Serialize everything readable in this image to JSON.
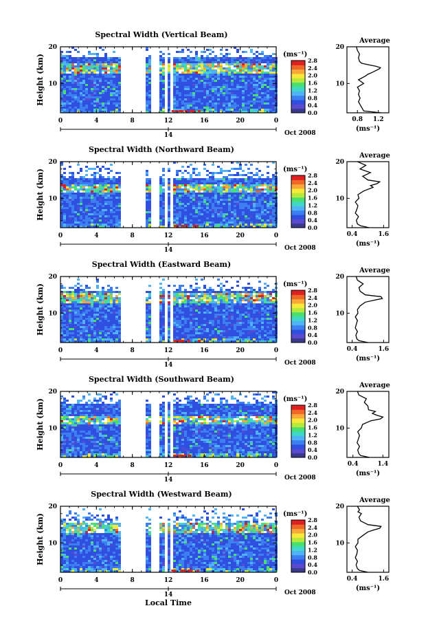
{
  "figure": {
    "xlabel": "Local Time",
    "ylabel": "Height (km)",
    "date_label": "Oct 2008",
    "day_label": "14",
    "unit_label": "(ms⁻¹)",
    "colorbar_ticks": [
      "0.0",
      "0.4",
      "0.8",
      "1.2",
      "1.6",
      "2.0",
      "2.4",
      "2.8"
    ],
    "colorbar_colors": [
      "#3a3a8c",
      "#5a4ad0",
      "#2f4fe0",
      "#3b7ff0",
      "#4fb3f5",
      "#3fd8c8",
      "#48e070",
      "#b8e83a",
      "#f8e83a",
      "#f8a838",
      "#f06828",
      "#e02020"
    ],
    "average_title": "Average"
  },
  "chart_data": [
    {
      "type": "heatmap",
      "title": "Spectral Width (Vertical Beam)",
      "x_ticks": [
        "0",
        "4",
        "8",
        "12",
        "16",
        "20",
        "0"
      ],
      "xlim": [
        0,
        24
      ],
      "y_ticks": [
        "10",
        "20"
      ],
      "ylim": [
        2,
        20
      ],
      "gaps_hours": [
        [
          6.7,
          9.3
        ],
        [
          9.8,
          10.9
        ],
        [
          11.4,
          11.7
        ],
        [
          12.05,
          12.25
        ]
      ],
      "dense_top_km": 17.5,
      "sparse_top_km": 20,
      "hot_band_km": 14.5,
      "average": {
        "title": "Average",
        "x_ticks": [
          "0.8",
          "1.2"
        ],
        "xlim": [
          0.6,
          1.4
        ],
        "profile": [
          [
            2,
            1.25
          ],
          [
            2.5,
            0.92
          ],
          [
            3,
            0.9
          ],
          [
            4,
            0.86
          ],
          [
            5,
            0.82
          ],
          [
            6,
            0.85
          ],
          [
            7,
            0.82
          ],
          [
            8,
            0.84
          ],
          [
            9,
            0.8
          ],
          [
            10,
            0.92
          ],
          [
            11,
            0.82
          ],
          [
            12,
            0.95
          ],
          [
            12.5,
            1.0
          ],
          [
            13,
            1.08
          ],
          [
            13.5,
            1.15
          ],
          [
            14,
            1.22
          ],
          [
            14.3,
            1.24
          ],
          [
            14.7,
            1.15
          ],
          [
            15,
            1.05
          ],
          [
            15.5,
            0.88
          ],
          [
            16,
            0.84
          ],
          [
            17,
            0.82
          ],
          [
            18,
            0.84
          ],
          [
            19,
            0.8
          ],
          [
            20,
            0.78
          ]
        ]
      }
    },
    {
      "type": "heatmap",
      "title": "Spectral Width (Northward Beam)",
      "x_ticks": [
        "0",
        "4",
        "8",
        "12",
        "16",
        "20",
        "0"
      ],
      "xlim": [
        0,
        24
      ],
      "y_ticks": [
        "10",
        "20"
      ],
      "ylim": [
        2,
        20
      ],
      "gaps_hours": [
        [
          6.7,
          9.3
        ],
        [
          9.8,
          10.9
        ],
        [
          11.4,
          11.7
        ],
        [
          12.05,
          12.25
        ]
      ],
      "dense_top_km": 15.5,
      "sparse_top_km": 20,
      "hot_band_km": 13.0,
      "average": {
        "title": "Average",
        "x_ticks": [
          "0.4",
          "1.6"
        ],
        "xlim": [
          0.2,
          1.8
        ],
        "profile": [
          [
            2,
            1.05
          ],
          [
            2.5,
            0.72
          ],
          [
            3,
            0.6
          ],
          [
            4,
            0.56
          ],
          [
            5,
            0.64
          ],
          [
            6,
            0.52
          ],
          [
            7,
            0.58
          ],
          [
            8,
            0.62
          ],
          [
            9,
            0.52
          ],
          [
            10,
            0.66
          ],
          [
            11,
            0.62
          ],
          [
            12,
            0.84
          ],
          [
            13,
            1.2
          ],
          [
            13.5,
            1.1
          ],
          [
            14,
            1.35
          ],
          [
            14.5,
            1.45
          ],
          [
            15,
            1.0
          ],
          [
            16,
            0.8
          ],
          [
            17,
            1.1
          ],
          [
            18,
            0.7
          ],
          [
            19,
            0.92
          ],
          [
            20,
            0.6
          ]
        ]
      }
    },
    {
      "type": "heatmap",
      "title": "Spectral Width (Eastward Beam)",
      "x_ticks": [
        "0",
        "4",
        "8",
        "12",
        "16",
        "20",
        "0"
      ],
      "xlim": [
        0,
        24
      ],
      "y_ticks": [
        "10",
        "20"
      ],
      "ylim": [
        2,
        20
      ],
      "gaps_hours": [
        [
          6.7,
          9.3
        ],
        [
          9.8,
          10.9
        ],
        [
          11.4,
          11.7
        ],
        [
          12.05,
          12.25
        ]
      ],
      "dense_top_km": 16.5,
      "sparse_top_km": 19,
      "hot_band_km": 14.3,
      "average": {
        "title": "Average",
        "x_ticks": [
          "0.4",
          "1.6"
        ],
        "xlim": [
          0.2,
          1.8
        ],
        "profile": [
          [
            2,
            1.0
          ],
          [
            2.5,
            0.66
          ],
          [
            3,
            0.58
          ],
          [
            4,
            0.54
          ],
          [
            5,
            0.6
          ],
          [
            6,
            0.52
          ],
          [
            7,
            0.56
          ],
          [
            8,
            0.6
          ],
          [
            9,
            0.52
          ],
          [
            10,
            0.62
          ],
          [
            11,
            0.6
          ],
          [
            12,
            0.7
          ],
          [
            13,
            0.9
          ],
          [
            13.5,
            1.2
          ],
          [
            14,
            1.55
          ],
          [
            14.5,
            1.5
          ],
          [
            15,
            0.9
          ],
          [
            16,
            0.7
          ],
          [
            17,
            0.66
          ],
          [
            18,
            0.82
          ],
          [
            19,
            0.6
          ],
          [
            20,
            0.55
          ]
        ]
      }
    },
    {
      "type": "heatmap",
      "title": "Spectral Width (Southward Beam)",
      "x_ticks": [
        "0",
        "4",
        "8",
        "12",
        "16",
        "20",
        "0"
      ],
      "xlim": [
        0,
        24
      ],
      "y_ticks": [
        "10",
        "20"
      ],
      "ylim": [
        2,
        20
      ],
      "gaps_hours": [
        [
          6.7,
          9.3
        ],
        [
          9.8,
          10.9
        ],
        [
          11.4,
          11.7
        ],
        [
          12.05,
          12.25
        ]
      ],
      "dense_top_km": 17.0,
      "sparse_top_km": 20,
      "hot_band_km": 12.5,
      "average": {
        "title": "Average",
        "x_ticks": [
          "0.4",
          "1.4"
        ],
        "xlim": [
          0.2,
          1.6
        ],
        "profile": [
          [
            2,
            0.95
          ],
          [
            2.5,
            0.66
          ],
          [
            3,
            0.6
          ],
          [
            4,
            0.56
          ],
          [
            5,
            0.62
          ],
          [
            6,
            0.54
          ],
          [
            7,
            0.58
          ],
          [
            8,
            0.62
          ],
          [
            9,
            0.56
          ],
          [
            10,
            0.68
          ],
          [
            11,
            0.72
          ],
          [
            12,
            1.0
          ],
          [
            12.5,
            1.32
          ],
          [
            13,
            1.4
          ],
          [
            13.5,
            1.2
          ],
          [
            14,
            1.05
          ],
          [
            14.5,
            1.15
          ],
          [
            15,
            0.92
          ],
          [
            16,
            0.9
          ],
          [
            17,
            0.78
          ],
          [
            18,
            0.85
          ],
          [
            19,
            0.6
          ],
          [
            20,
            0.55
          ]
        ]
      }
    },
    {
      "type": "heatmap",
      "title": "Spectral Width (Westward Beam)",
      "x_ticks": [
        "0",
        "4",
        "8",
        "12",
        "16",
        "20",
        "0"
      ],
      "xlim": [
        0,
        24
      ],
      "y_ticks": [
        "10",
        "20"
      ],
      "ylim": [
        2,
        20
      ],
      "gaps_hours": [
        [
          6.7,
          9.3
        ],
        [
          9.8,
          10.9
        ],
        [
          11.4,
          11.7
        ],
        [
          12.05,
          12.25
        ]
      ],
      "dense_top_km": 16.0,
      "sparse_top_km": 19,
      "hot_band_km": 14.5,
      "average": {
        "title": "Average",
        "x_ticks": [
          "0.4",
          "1.6"
        ],
        "xlim": [
          0.2,
          1.8
        ],
        "profile": [
          [
            2,
            1.0
          ],
          [
            2.5,
            0.68
          ],
          [
            3,
            0.6
          ],
          [
            4,
            0.55
          ],
          [
            5,
            0.6
          ],
          [
            6,
            0.52
          ],
          [
            7,
            0.58
          ],
          [
            8,
            0.6
          ],
          [
            9,
            0.52
          ],
          [
            10,
            0.62
          ],
          [
            11,
            0.62
          ],
          [
            12,
            0.8
          ],
          [
            13,
            1.0
          ],
          [
            13.5,
            1.2
          ],
          [
            14,
            1.45
          ],
          [
            14.5,
            1.5
          ],
          [
            15,
            1.0
          ],
          [
            16,
            0.72
          ],
          [
            17,
            0.66
          ],
          [
            18,
            0.75
          ],
          [
            18.5,
            0.62
          ],
          [
            19,
            0.68
          ],
          [
            20,
            0.6
          ]
        ]
      }
    }
  ]
}
